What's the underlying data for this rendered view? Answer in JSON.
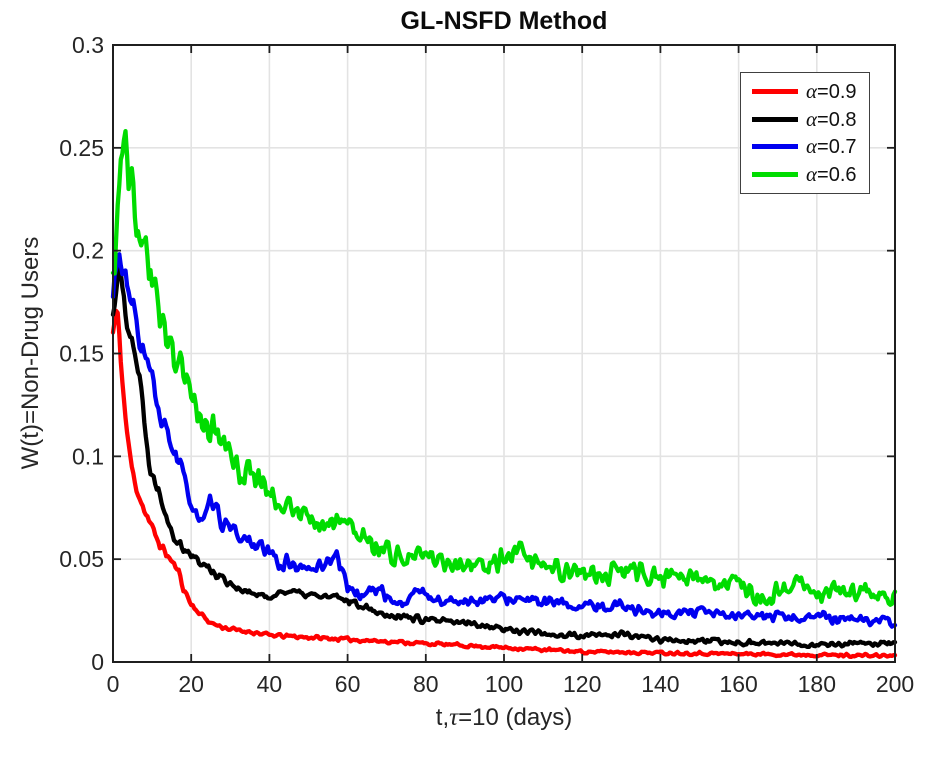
{
  "chart_data": {
    "type": "line",
    "title": "GL-NSFD Method",
    "xlabel": "t,τ=10 (days)",
    "xlabel_parts": {
      "pre": "t,",
      "tau": "τ",
      "post": "=10 (days)"
    },
    "ylabel": "W(t)=Non-Drug Users",
    "xlim": [
      0,
      200
    ],
    "ylim": [
      0,
      0.3
    ],
    "xticks": [
      0,
      20,
      40,
      60,
      80,
      100,
      120,
      140,
      160,
      180,
      200
    ],
    "yticks": [
      0,
      0.05,
      0.1,
      0.15,
      0.2,
      0.25,
      0.3
    ],
    "ytick_labels": [
      "0",
      "0.05",
      "0.1",
      "0.15",
      "0.2",
      "0.25",
      "0.3"
    ],
    "grid": true,
    "legend_position": "top-right",
    "axis_color": "#1f1f1f",
    "grid_color": "#e3e3e3",
    "tick_label_color": "#262626",
    "series": [
      {
        "id": "alpha-0.9",
        "name": "α=0.9",
        "alpha": 0.9,
        "color": "#ff0000",
        "legend": {
          "sym": "α",
          "val": "=0.9"
        },
        "seed": 11,
        "noise": [
          0.0008,
          0.028
        ],
        "anchors": [
          [
            0,
            0.16
          ],
          [
            1,
            0.172
          ],
          [
            2,
            0.148
          ],
          [
            3,
            0.122
          ],
          [
            4,
            0.105
          ],
          [
            5,
            0.092
          ],
          [
            6,
            0.085
          ],
          [
            7,
            0.079
          ],
          [
            8,
            0.074
          ],
          [
            10,
            0.065
          ],
          [
            12,
            0.057
          ],
          [
            15,
            0.049
          ],
          [
            17,
            0.043
          ],
          [
            18,
            0.036
          ],
          [
            20,
            0.028
          ],
          [
            22,
            0.024
          ],
          [
            25,
            0.019
          ],
          [
            28,
            0.017
          ],
          [
            30,
            0.016
          ],
          [
            33,
            0.015
          ],
          [
            35,
            0.0148
          ],
          [
            40,
            0.013
          ],
          [
            45,
            0.0125
          ],
          [
            50,
            0.012
          ],
          [
            55,
            0.0115
          ],
          [
            60,
            0.011
          ],
          [
            65,
            0.0105
          ],
          [
            70,
            0.01
          ],
          [
            75,
            0.0095
          ],
          [
            80,
            0.009
          ],
          [
            85,
            0.0085
          ],
          [
            90,
            0.008
          ],
          [
            95,
            0.0075
          ],
          [
            100,
            0.007
          ],
          [
            110,
            0.006
          ],
          [
            120,
            0.005
          ],
          [
            130,
            0.0048
          ],
          [
            140,
            0.0045
          ],
          [
            150,
            0.0042
          ],
          [
            160,
            0.004
          ],
          [
            170,
            0.0037
          ],
          [
            180,
            0.0035
          ],
          [
            190,
            0.0032
          ],
          [
            200,
            0.003
          ]
        ]
      },
      {
        "id": "alpha-0.8",
        "name": "α=0.8",
        "alpha": 0.8,
        "color": "#000000",
        "legend": {
          "sym": "α",
          "val": "=0.8"
        },
        "seed": 22,
        "noise": [
          0.0013,
          0.03
        ],
        "anchors": [
          [
            0,
            0.17
          ],
          [
            1.5,
            0.195
          ],
          [
            3,
            0.172
          ],
          [
            5,
            0.158
          ],
          [
            7,
            0.135
          ],
          [
            9,
            0.1
          ],
          [
            10,
            0.092
          ],
          [
            12,
            0.082
          ],
          [
            14,
            0.07
          ],
          [
            16,
            0.06
          ],
          [
            18,
            0.056
          ],
          [
            20,
            0.052
          ],
          [
            22,
            0.049
          ],
          [
            25,
            0.0447
          ],
          [
            28,
            0.041
          ],
          [
            30,
            0.0384
          ],
          [
            33,
            0.035
          ],
          [
            35,
            0.0335
          ],
          [
            38,
            0.032
          ],
          [
            40,
            0.0316
          ],
          [
            42,
            0.033
          ],
          [
            44,
            0.035
          ],
          [
            46,
            0.034
          ],
          [
            48,
            0.033
          ],
          [
            50,
            0.0326
          ],
          [
            53,
            0.032
          ],
          [
            55,
            0.0315
          ],
          [
            58,
            0.031
          ],
          [
            60,
            0.03
          ],
          [
            63,
            0.028
          ],
          [
            65,
            0.027
          ],
          [
            68,
            0.024
          ],
          [
            70,
            0.023
          ],
          [
            72,
            0.0229
          ],
          [
            75,
            0.022
          ],
          [
            78,
            0.021
          ],
          [
            80,
            0.0204
          ],
          [
            85,
            0.0195
          ],
          [
            90,
            0.019
          ],
          [
            95,
            0.018
          ],
          [
            100,
            0.016
          ],
          [
            105,
            0.015
          ],
          [
            110,
            0.014
          ],
          [
            115,
            0.013
          ],
          [
            120,
            0.0125
          ],
          [
            125,
            0.013
          ],
          [
            130,
            0.0135
          ],
          [
            135,
            0.012
          ],
          [
            140,
            0.011
          ],
          [
            145,
            0.0105
          ],
          [
            150,
            0.01
          ],
          [
            155,
            0.0098
          ],
          [
            160,
            0.0097
          ],
          [
            165,
            0.0093
          ],
          [
            170,
            0.009
          ],
          [
            175,
            0.0088
          ],
          [
            180,
            0.0085
          ],
          [
            185,
            0.0087
          ],
          [
            190,
            0.009
          ],
          [
            195,
            0.009
          ],
          [
            200,
            0.009
          ]
        ]
      },
      {
        "id": "alpha-0.7",
        "name": "α=0.7",
        "alpha": 0.7,
        "color": "#0000f0",
        "legend": {
          "sym": "α",
          "val": "=0.7"
        },
        "seed": 33,
        "noise": [
          0.0022,
          0.035
        ],
        "anchors": [
          [
            0,
            0.175
          ],
          [
            1,
            0.2
          ],
          [
            3,
            0.185
          ],
          [
            5,
            0.172
          ],
          [
            8,
            0.15
          ],
          [
            10,
            0.138
          ],
          [
            12,
            0.115
          ],
          [
            14,
            0.112
          ],
          [
            16,
            0.1
          ],
          [
            18,
            0.09
          ],
          [
            20,
            0.078
          ],
          [
            23,
            0.066
          ],
          [
            25,
            0.078
          ],
          [
            28,
            0.068
          ],
          [
            30,
            0.064
          ],
          [
            33,
            0.06
          ],
          [
            35,
            0.059
          ],
          [
            38,
            0.055
          ],
          [
            40,
            0.053
          ],
          [
            43,
            0.047
          ],
          [
            45,
            0.049
          ],
          [
            48,
            0.045
          ],
          [
            50,
            0.045
          ],
          [
            53,
            0.047
          ],
          [
            55,
            0.049
          ],
          [
            57,
            0.053
          ],
          [
            59,
            0.042
          ],
          [
            60,
            0.037
          ],
          [
            63,
            0.032
          ],
          [
            65,
            0.034
          ],
          [
            68,
            0.036
          ],
          [
            70,
            0.032
          ],
          [
            73,
            0.028
          ],
          [
            75,
            0.029
          ],
          [
            78,
            0.036
          ],
          [
            80,
            0.032
          ],
          [
            85,
            0.029
          ],
          [
            90,
            0.03
          ],
          [
            95,
            0.03
          ],
          [
            100,
            0.031
          ],
          [
            105,
            0.03
          ],
          [
            110,
            0.029
          ],
          [
            115,
            0.028
          ],
          [
            120,
            0.027
          ],
          [
            125,
            0.027
          ],
          [
            130,
            0.028
          ],
          [
            135,
            0.025
          ],
          [
            140,
            0.023
          ],
          [
            145,
            0.024
          ],
          [
            150,
            0.024
          ],
          [
            155,
            0.023
          ],
          [
            160,
            0.022
          ],
          [
            165,
            0.022
          ],
          [
            170,
            0.022
          ],
          [
            175,
            0.0215
          ],
          [
            180,
            0.022
          ],
          [
            185,
            0.021
          ],
          [
            190,
            0.021
          ],
          [
            195,
            0.02
          ],
          [
            200,
            0.019
          ]
        ]
      },
      {
        "id": "alpha-0.6",
        "name": "α=0.6",
        "alpha": 0.6,
        "color": "#00dc00",
        "legend": {
          "sym": "α",
          "val": "=0.6"
        },
        "seed": 44,
        "noise": [
          0.004,
          0.04
        ],
        "anchors": [
          [
            0,
            0.19
          ],
          [
            1,
            0.21
          ],
          [
            2,
            0.244
          ],
          [
            3,
            0.256
          ],
          [
            4,
            0.24
          ],
          [
            5,
            0.227
          ],
          [
            6,
            0.214
          ],
          [
            7,
            0.201
          ],
          [
            8,
            0.207
          ],
          [
            9,
            0.196
          ],
          [
            10,
            0.179
          ],
          [
            11,
            0.183
          ],
          [
            12,
            0.169
          ],
          [
            13,
            0.172
          ],
          [
            14,
            0.154
          ],
          [
            15,
            0.159
          ],
          [
            16,
            0.144
          ],
          [
            17,
            0.147
          ],
          [
            18,
            0.135
          ],
          [
            19,
            0.138
          ],
          [
            20,
            0.129
          ],
          [
            22,
            0.121
          ],
          [
            25,
            0.113
          ],
          [
            27,
            0.109
          ],
          [
            28,
            0.105
          ],
          [
            30,
            0.102
          ],
          [
            32,
            0.097
          ],
          [
            33,
            0.086
          ],
          [
            34,
            0.094
          ],
          [
            36,
            0.091
          ],
          [
            38,
            0.087
          ],
          [
            40,
            0.083
          ],
          [
            42,
            0.079
          ],
          [
            45,
            0.075
          ],
          [
            47,
            0.072
          ],
          [
            50,
            0.07
          ],
          [
            52,
            0.068
          ],
          [
            55,
            0.066
          ],
          [
            57,
            0.069
          ],
          [
            60,
            0.066
          ],
          [
            62,
            0.063
          ],
          [
            65,
            0.06
          ],
          [
            67,
            0.057
          ],
          [
            70,
            0.055
          ],
          [
            72,
            0.052
          ],
          [
            75,
            0.05
          ],
          [
            77,
            0.051
          ],
          [
            80,
            0.052
          ],
          [
            82,
            0.05
          ],
          [
            85,
            0.049
          ],
          [
            88,
            0.048
          ],
          [
            90,
            0.048
          ],
          [
            93,
            0.047
          ],
          [
            95,
            0.046
          ],
          [
            98,
            0.048
          ],
          [
            100,
            0.05
          ],
          [
            103,
            0.053
          ],
          [
            105,
            0.052
          ],
          [
            108,
            0.048
          ],
          [
            110,
            0.047
          ],
          [
            113,
            0.045
          ],
          [
            115,
            0.044
          ],
          [
            118,
            0.044
          ],
          [
            120,
            0.045
          ],
          [
            123,
            0.042
          ],
          [
            125,
            0.04
          ],
          [
            128,
            0.043
          ],
          [
            130,
            0.045
          ],
          [
            133,
            0.044
          ],
          [
            135,
            0.043
          ],
          [
            138,
            0.042
          ],
          [
            140,
            0.041
          ],
          [
            143,
            0.042
          ],
          [
            145,
            0.042
          ],
          [
            148,
            0.041
          ],
          [
            150,
            0.04
          ],
          [
            153,
            0.038
          ],
          [
            155,
            0.037
          ],
          [
            158,
            0.039
          ],
          [
            160,
            0.04
          ],
          [
            163,
            0.035
          ],
          [
            165,
            0.032
          ],
          [
            167,
            0.029
          ],
          [
            170,
            0.034
          ],
          [
            173,
            0.036
          ],
          [
            175,
            0.038
          ],
          [
            178,
            0.036
          ],
          [
            180,
            0.034
          ],
          [
            183,
            0.035
          ],
          [
            185,
            0.036
          ],
          [
            188,
            0.035
          ],
          [
            190,
            0.035
          ],
          [
            193,
            0.034
          ],
          [
            195,
            0.033
          ],
          [
            198,
            0.033
          ],
          [
            200,
            0.032
          ]
        ]
      }
    ]
  }
}
